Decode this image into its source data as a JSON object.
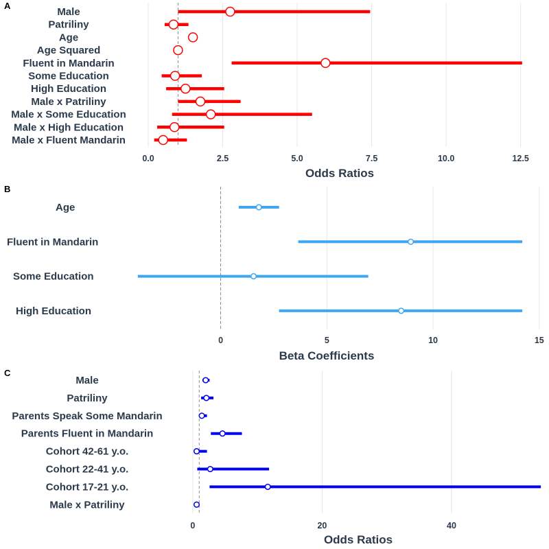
{
  "chart_data": [
    {
      "panel": "A",
      "type": "scatter",
      "xlabel": "Odds Ratios",
      "ticks": [
        "0.0",
        "2.5",
        "5.0",
        "7.5",
        "10.0",
        "12.5"
      ],
      "tick_values": [
        0,
        2.5,
        5,
        7.5,
        10,
        12.5
      ],
      "xlim": [
        -0.3,
        12.9
      ],
      "reference_line": 1,
      "color": "#ff0000",
      "point_size": "large",
      "grid": true,
      "rows": [
        {
          "label": "Male",
          "est": 2.75,
          "lo": 1.0,
          "hi": 7.45
        },
        {
          "label": "Patriliny",
          "est": 0.85,
          "lo": 0.55,
          "hi": 1.35
        },
        {
          "label": "Age",
          "est": 1.5,
          "lo": 1.38,
          "hi": 1.6
        },
        {
          "label": "Age Squared",
          "est": 1.0,
          "lo": 0.98,
          "hi": 1.02
        },
        {
          "label": "Fluent in Mandarin",
          "est": 5.95,
          "lo": 2.8,
          "hi": 12.55
        },
        {
          "label": "Some Education",
          "est": 0.9,
          "lo": 0.45,
          "hi": 1.8
        },
        {
          "label": "High Education",
          "est": 1.25,
          "lo": 0.6,
          "hi": 2.55
        },
        {
          "label": "Male x Patriliny",
          "est": 1.75,
          "lo": 1.0,
          "hi": 3.1
        },
        {
          "label": "Male x Some Education",
          "est": 2.1,
          "lo": 0.8,
          "hi": 5.5
        },
        {
          "label": "Male x High Education",
          "est": 0.88,
          "lo": 0.3,
          "hi": 2.55
        },
        {
          "label": "Male x Fluent Mandarin",
          "est": 0.5,
          "lo": 0.2,
          "hi": 1.3
        }
      ]
    },
    {
      "panel": "B",
      "type": "scatter",
      "xlabel": "Beta Coefficients",
      "ticks": [
        "0",
        "5",
        "10",
        "15"
      ],
      "tick_values": [
        0,
        5,
        10,
        15
      ],
      "xlim": [
        -4.25,
        15.2
      ],
      "reference_line": 0,
      "color": "#3ea6f2",
      "point_size": "small",
      "grid": true,
      "rows": [
        {
          "label": "Age",
          "est": 1.8,
          "lo": 0.85,
          "hi": 2.75
        },
        {
          "label": "Fluent in Mandarin",
          "est": 8.95,
          "lo": 3.65,
          "hi": 14.2
        },
        {
          "label": "Some Education",
          "est": 1.55,
          "lo": -3.9,
          "hi": 6.95
        },
        {
          "label": "High Education",
          "est": 8.5,
          "lo": 2.75,
          "hi": 14.2
        }
      ]
    },
    {
      "panel": "C",
      "type": "scatter",
      "xlabel": "Odds Ratios",
      "ticks": [
        "0",
        "20",
        "40"
      ],
      "tick_values": [
        0,
        20,
        40
      ],
      "xlim": [
        -2,
        54
      ],
      "reference_line": 1,
      "color": "#0000ee",
      "point_size": "small",
      "grid": true,
      "rows": [
        {
          "label": "Male",
          "est": 2.0,
          "lo": 1.5,
          "hi": 2.6
        },
        {
          "label": "Patriliny",
          "est": 2.1,
          "lo": 1.3,
          "hi": 3.2
        },
        {
          "label": "Parents Speak Some Mandarin",
          "est": 1.4,
          "lo": 1.0,
          "hi": 2.2
        },
        {
          "label": "Parents Fluent in Mandarin",
          "est": 4.6,
          "lo": 2.8,
          "hi": 7.6
        },
        {
          "label": "Cohort 42-61 y.o.",
          "est": 0.6,
          "lo": 0.2,
          "hi": 2.2
        },
        {
          "label": "Cohort 22-41 y.o.",
          "est": 2.7,
          "lo": 0.7,
          "hi": 11.8
        },
        {
          "label": "Cohort 17-21 y.o.",
          "est": 11.6,
          "lo": 2.6,
          "hi": 53.8
        },
        {
          "label": "Male x Patriliny",
          "est": 0.6,
          "lo": 0.4,
          "hi": 0.8
        }
      ]
    }
  ]
}
